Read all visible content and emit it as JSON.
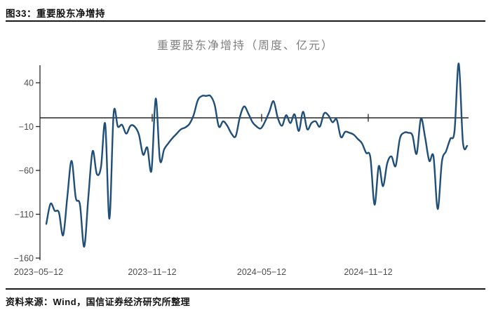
{
  "figure": {
    "caption": "图33：重要股东净增持",
    "source": "资料来源：Wind，国信证券经济研究所整理"
  },
  "chart_data": {
    "type": "line",
    "title": "重要股东净增持（周度、亿元）",
    "series_name": "重要股东净增持",
    "frequency": "weekly",
    "start_date": "2023-05-12",
    "x_tick_labels": [
      "2023-05-12",
      "2023-11-12",
      "2024-05-12",
      "2024-11-12"
    ],
    "y_ticks": [
      40,
      -10,
      -60,
      -110,
      -160
    ],
    "ylim": [
      -162,
      60
    ],
    "grid": false,
    "legend": false,
    "line_color": "#1F4E79",
    "axis_color": "#262626",
    "values": [
      -121,
      -98,
      -106,
      -108,
      -134,
      -90,
      -49,
      -91,
      -99,
      -147,
      -90,
      -38,
      -64,
      -56,
      -7,
      -115,
      5,
      -10,
      -8,
      -18,
      -9,
      -10,
      -19,
      -42,
      -34,
      -60,
      22,
      -48,
      -36,
      -29,
      -23,
      -18,
      -13,
      -11,
      -7,
      3,
      20,
      25,
      25,
      25,
      15,
      -10,
      -4,
      -9,
      -18,
      -21,
      1,
      13,
      5,
      -5,
      -10,
      -12,
      -4,
      7,
      19,
      0,
      -9,
      3,
      -6,
      4,
      -15,
      7,
      -13,
      -6,
      -4,
      -10,
      5,
      3,
      -5,
      -2,
      -22,
      -16,
      -17,
      -19,
      -24,
      -29,
      -40,
      -45,
      -99,
      -55,
      -78,
      -52,
      -44,
      -55,
      -24,
      -17,
      -17,
      -20,
      -41,
      -1,
      -22,
      -49,
      -44,
      -104,
      -50,
      -38,
      -24,
      -15,
      62,
      -28,
      -32
    ]
  }
}
